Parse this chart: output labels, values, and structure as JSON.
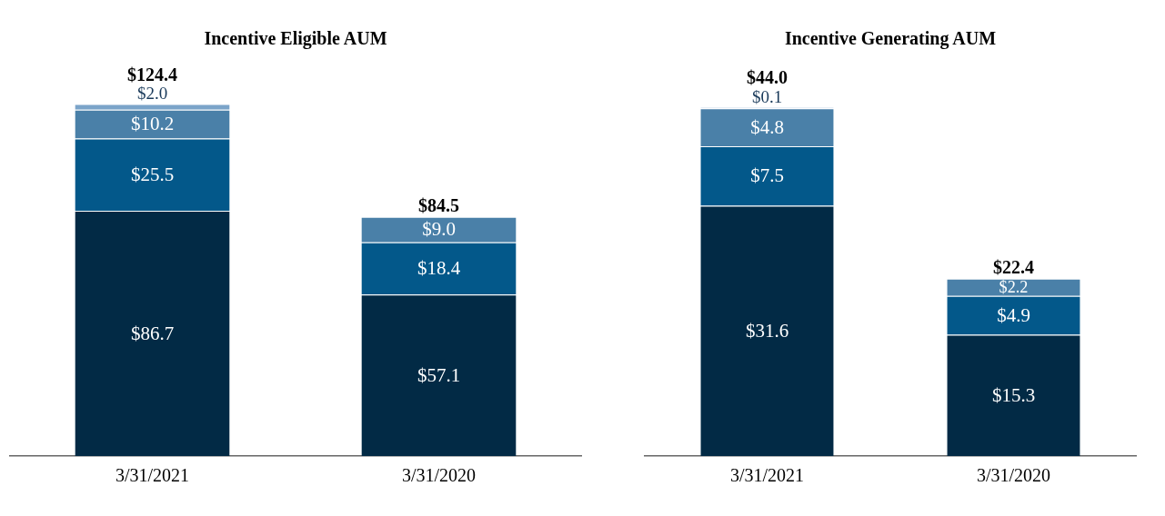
{
  "chart_data": [
    {
      "type": "bar",
      "title": "Incentive Eligible AUM",
      "categories": [
        "3/31/2021",
        "3/31/2020"
      ],
      "stacked": true,
      "totals": [
        "$124.4",
        "$84.5"
      ],
      "series": [
        {
          "color": "#022a45",
          "values": [
            86.7,
            57.1
          ],
          "value_labels": [
            "$86.7",
            "$57.1"
          ]
        },
        {
          "color": "#03588a",
          "values": [
            25.5,
            18.4
          ],
          "value_labels": [
            "$25.5",
            "$18.4"
          ]
        },
        {
          "color": "#4a80a8",
          "values": [
            10.2,
            9.0
          ],
          "value_labels": [
            "$10.2",
            "$9.0"
          ]
        },
        {
          "color": "#7ba4c9",
          "values": [
            2.0,
            null
          ],
          "value_labels": [
            "$2.0",
            null
          ]
        }
      ]
    },
    {
      "type": "bar",
      "title": "Incentive Generating AUM",
      "categories": [
        "3/31/2021",
        "3/31/2020"
      ],
      "stacked": true,
      "totals": [
        "$44.0",
        "$22.4"
      ],
      "series": [
        {
          "color": "#022a45",
          "values": [
            31.6,
            15.3
          ],
          "value_labels": [
            "$31.6",
            "$15.3"
          ]
        },
        {
          "color": "#03588a",
          "values": [
            7.5,
            4.9
          ],
          "value_labels": [
            "$7.5",
            "$4.9"
          ]
        },
        {
          "color": "#4a80a8",
          "values": [
            4.8,
            2.2
          ],
          "value_labels": [
            "$4.8",
            "$2.2"
          ]
        },
        {
          "color": "#7ba4c9",
          "values": [
            0.1,
            null
          ],
          "value_labels": [
            "$0.1",
            null
          ]
        }
      ]
    }
  ]
}
